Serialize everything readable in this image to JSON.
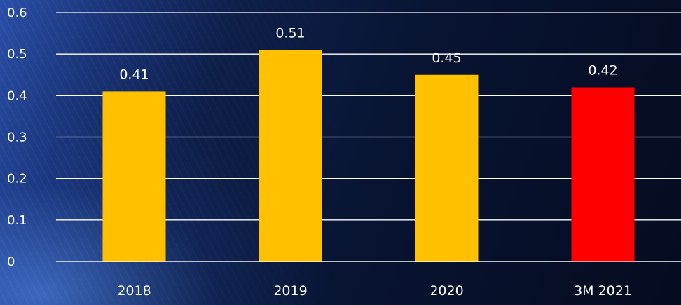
{
  "chart_data": {
    "type": "bar",
    "categories": [
      "2018",
      "2019",
      "2020",
      "3M 2021"
    ],
    "values": [
      0.41,
      0.51,
      0.45,
      0.42
    ],
    "data_labels": [
      "0.41",
      "0.51",
      "0.45",
      "0.42"
    ],
    "title": "",
    "xlabel": "",
    "ylabel": "",
    "ylim": [
      0,
      0.6
    ],
    "y_ticks": [
      0,
      0.1,
      0.2,
      0.3,
      0.4,
      0.5,
      0.6
    ],
    "y_tick_labels": [
      "0",
      "0.1",
      "0.2",
      "0.3",
      "0.4",
      "0.5",
      "0.6"
    ],
    "grid": true,
    "legend": "none",
    "bar_colors": [
      "#ffc000",
      "#ffc000",
      "#ffc000",
      "#ff0000"
    ],
    "colors": {
      "primary_bar": "#ffc000",
      "highlight_bar": "#ff0000",
      "gridline": "#ffffff",
      "text": "#ffffff"
    }
  }
}
